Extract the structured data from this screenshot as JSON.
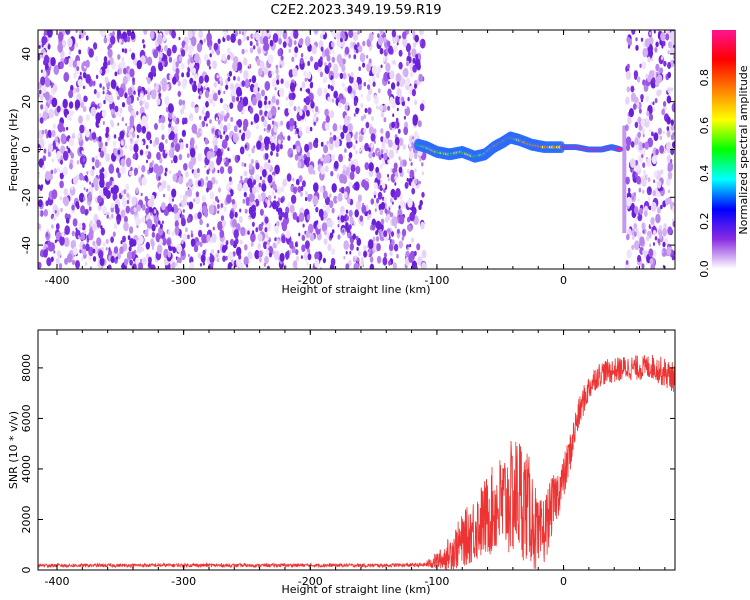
{
  "figure": {
    "title": "C2E2.2023.349.19.59.R19"
  },
  "chart_data": [
    {
      "type": "heatmap",
      "xlabel": "Height of straight line (km)",
      "ylabel": "Frequency (Hz)",
      "xlim": [
        -415,
        88
      ],
      "ylim": [
        -50,
        50
      ],
      "x_ticks": [
        -400,
        -300,
        -200,
        -100,
        0
      ],
      "y_ticks": [
        -40,
        -20,
        0,
        20,
        40
      ],
      "x_tick_labels": [
        "-400",
        "-300",
        "-200",
        "-100",
        "0"
      ],
      "y_tick_labels": [
        "-40",
        "-20",
        "0",
        "20",
        "40"
      ],
      "noise_regions": [
        [
          -415,
          -110
        ],
        [
          50,
          88
        ]
      ],
      "signal_track": [
        {
          "x": -115,
          "f": 2
        },
        {
          "x": -108,
          "f": 1
        },
        {
          "x": -100,
          "f": -1
        },
        {
          "x": -90,
          "f": -2
        },
        {
          "x": -80,
          "f": -1
        },
        {
          "x": -70,
          "f": -3
        },
        {
          "x": -62,
          "f": -2
        },
        {
          "x": -55,
          "f": 1
        },
        {
          "x": -48,
          "f": 3
        },
        {
          "x": -42,
          "f": 5
        },
        {
          "x": -35,
          "f": 4
        },
        {
          "x": -25,
          "f": 2
        },
        {
          "x": -15,
          "f": 1
        },
        {
          "x": 0,
          "f": 1
        },
        {
          "x": 10,
          "f": 1
        },
        {
          "x": 20,
          "f": 0
        },
        {
          "x": 30,
          "f": 0
        },
        {
          "x": 38,
          "f": 1
        },
        {
          "x": 45,
          "f": 0
        }
      ],
      "colorbar": {
        "label": "Normalized spectral amplitude",
        "min": 0.0,
        "max": 1.0,
        "ticks": [
          0.0,
          0.2,
          0.4,
          0.6,
          0.8
        ],
        "tick_labels": [
          "0.0",
          "0.2",
          "0.4",
          "0.6",
          "0.8"
        ],
        "colors": [
          "#ffffff",
          "#8a2be2",
          "#0000ff",
          "#00ffff",
          "#00ff00",
          "#ffff00",
          "#ff8000",
          "#ff0000",
          "#ff1493"
        ]
      },
      "grid": false
    },
    {
      "type": "line",
      "xlabel": "Height of straight line (km)",
      "ylabel": "SNR (10 * v/v)",
      "xlim": [
        -415,
        88
      ],
      "ylim": [
        0,
        9500
      ],
      "x_ticks": [
        -400,
        -300,
        -200,
        -100,
        0
      ],
      "y_ticks": [
        0,
        2000,
        4000,
        6000,
        8000
      ],
      "x_tick_labels": [
        "-400",
        "-300",
        "-200",
        "-100",
        "0"
      ],
      "y_tick_labels": [
        "0",
        "2000",
        "4000",
        "6000",
        "8000"
      ],
      "color": "#ee3333",
      "series": [
        {
          "x": [
            -415,
            -350,
            -300,
            -250,
            -200,
            -150,
            -110,
            -95,
            -85,
            -75,
            -65,
            -55,
            -45,
            -35,
            -30,
            -25,
            -20,
            -15,
            -10,
            -5,
            0,
            5,
            10,
            15,
            20,
            25,
            30,
            40,
            50,
            60,
            70,
            80,
            88
          ],
          "values": [
            180,
            180,
            190,
            180,
            190,
            180,
            200,
            450,
            900,
            1400,
            1900,
            2400,
            2700,
            3000,
            2600,
            2200,
            1100,
            1600,
            2400,
            3000,
            3600,
            4600,
            5800,
            6600,
            7200,
            7600,
            7800,
            7900,
            8000,
            8000,
            8050,
            7800,
            7600
          ],
          "noise": [
            70,
            70,
            70,
            70,
            70,
            70,
            80,
            500,
            900,
            1200,
            1500,
            1800,
            2200,
            2500,
            2300,
            2000,
            1600,
            1400,
            1200,
            1000,
            900,
            800,
            700,
            600,
            550,
            500,
            500,
            500,
            500,
            500,
            500,
            600,
            600
          ]
        }
      ],
      "grid": false
    }
  ]
}
